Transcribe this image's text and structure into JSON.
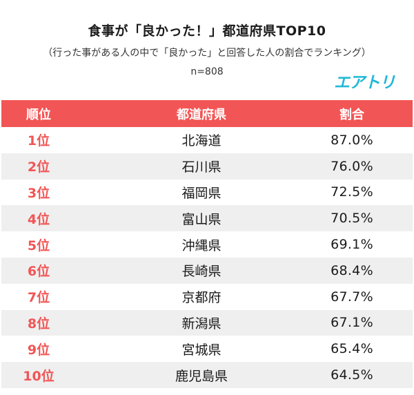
{
  "title": "食事が「良かった！」都道府県TOP10",
  "subtitle": "（行った事がある人の中で「良かった」と回答した人の割合でランキング）",
  "sample": "n=808",
  "logo": "エアトリ",
  "colors": {
    "accent": "#f25555",
    "logo": "#22b8d8",
    "row_shade": "#efefef"
  },
  "chart_data": {
    "type": "table",
    "columns": [
      "順位",
      "都道府県",
      "割合"
    ],
    "rows": [
      {
        "rank": "1位",
        "prefecture": "北海道",
        "rate": "87.0%",
        "value": 87.0
      },
      {
        "rank": "2位",
        "prefecture": "石川県",
        "rate": "76.0%",
        "value": 76.0
      },
      {
        "rank": "3位",
        "prefecture": "福岡県",
        "rate": "72.5%",
        "value": 72.5
      },
      {
        "rank": "4位",
        "prefecture": "富山県",
        "rate": "70.5%",
        "value": 70.5
      },
      {
        "rank": "5位",
        "prefecture": "沖縄県",
        "rate": "69.1%",
        "value": 69.1
      },
      {
        "rank": "6位",
        "prefecture": "長崎県",
        "rate": "68.4%",
        "value": 68.4
      },
      {
        "rank": "7位",
        "prefecture": "京都府",
        "rate": "67.7%",
        "value": 67.7
      },
      {
        "rank": "8位",
        "prefecture": "新潟県",
        "rate": "67.1%",
        "value": 67.1
      },
      {
        "rank": "9位",
        "prefecture": "宮城県",
        "rate": "65.4%",
        "value": 65.4
      },
      {
        "rank": "10位",
        "prefecture": "鹿児島県",
        "rate": "64.5%",
        "value": 64.5
      }
    ]
  }
}
